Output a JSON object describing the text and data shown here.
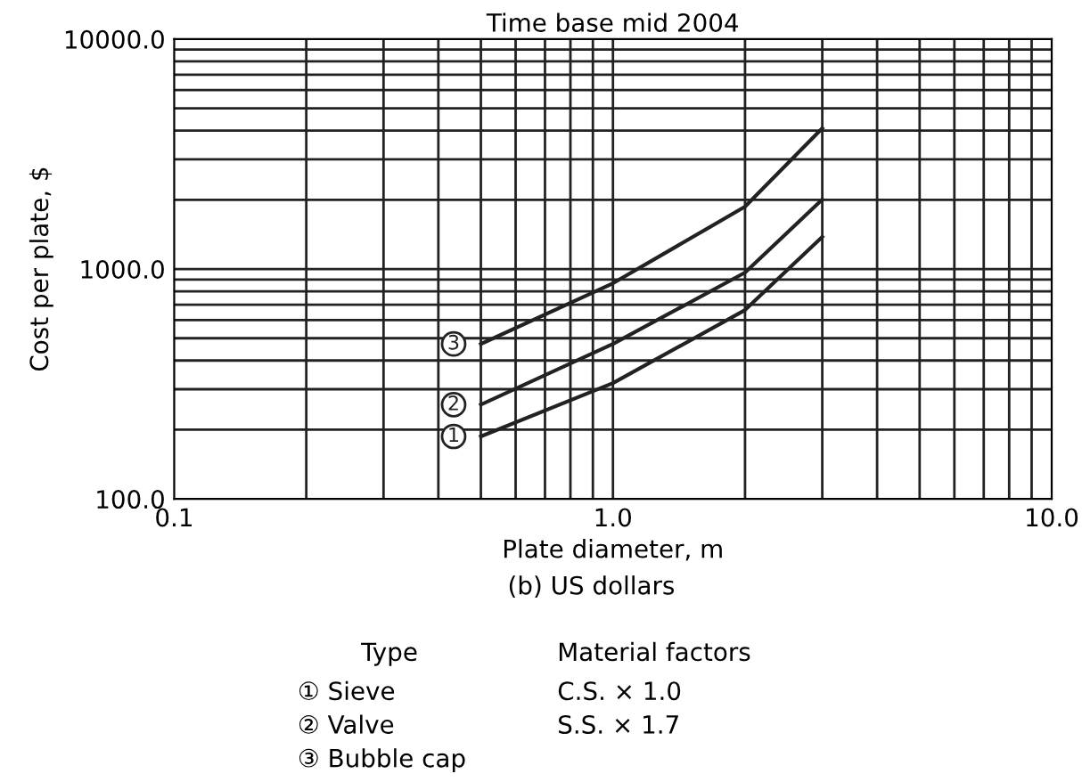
{
  "chart_data": {
    "type": "line",
    "title": "Time base mid 2004",
    "subtitle": "(b) US dollars",
    "xlabel": "Plate diameter, m",
    "ylabel": "Cost per plate, $",
    "x": [
      0.5,
      1.0,
      2.0,
      3.0
    ],
    "series": [
      {
        "name": "3",
        "color": "#222222",
        "values": [
          472,
          867,
          1867,
          4095
        ]
      },
      {
        "name": "2",
        "color": "#222222",
        "values": [
          257,
          472,
          965,
          2006
        ]
      },
      {
        "name": "1",
        "color": "#222222",
        "values": [
          187,
          319,
          663,
          1379
        ]
      }
    ],
    "log": "xy",
    "xlim": [
      0.1,
      10.0
    ],
    "ylim": [
      100.0,
      10000.0
    ],
    "xticks": [
      {
        "value": 0.1,
        "label": "0.1"
      },
      {
        "value": 1.0,
        "label": "1.0"
      },
      {
        "value": 10.0,
        "label": "10.0"
      }
    ],
    "yticks": [
      {
        "value": 100.0,
        "label": "100.0"
      },
      {
        "value": 1000.0,
        "label": "1000.0"
      },
      {
        "value": 10000.0,
        "label": "10000.0"
      }
    ],
    "grid": true,
    "legend": "left",
    "marker": "none",
    "line_style": "solid",
    "annotations": [
      "Type",
      "① Sieve",
      "② Valve",
      "③ Bubble cap",
      "Material factors",
      "C.S. × 1.0",
      "S.S. × 1.7"
    ]
  }
}
